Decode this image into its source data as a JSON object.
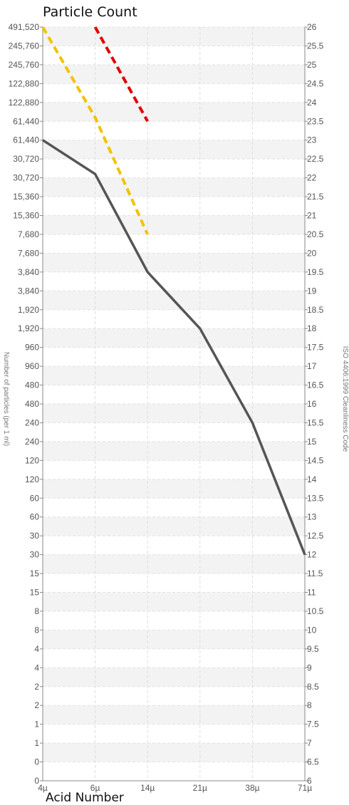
{
  "title": "Particle Count",
  "footer_label": "Acid Number",
  "chart_data": {
    "type": "line",
    "title": "Particle Count",
    "x": [
      "4µ",
      "6µ",
      "14µ",
      "21µ",
      "38µ",
      "71µ"
    ],
    "xlabel": "",
    "ylabel_left": "Number of particles (per 1 ml)",
    "ylabel_right": "ISO 4406:1999 Cleanliness Code",
    "ylim_right": [
      6,
      26
    ],
    "left_tick_labels": [
      "491,520",
      "245,760",
      "245,760",
      "122,880",
      "122,880",
      "61,440",
      "61,440",
      "30,720",
      "30,720",
      "15,360",
      "15,360",
      "7,680",
      "7,680",
      "3,840",
      "3,840",
      "1,920",
      "1,920",
      "960",
      "960",
      "480",
      "480",
      "240",
      "240",
      "120",
      "120",
      "60",
      "60",
      "30",
      "30",
      "15",
      "15",
      "8",
      "8",
      "4",
      "4",
      "2",
      "2",
      "1",
      "1",
      "0",
      "0"
    ],
    "right_tick_labels": [
      "26",
      "25.5",
      "25",
      "24.5",
      "24",
      "23.5",
      "23",
      "22.5",
      "22",
      "21.5",
      "21",
      "20.5",
      "20",
      "19.5",
      "19",
      "18.5",
      "18",
      "17.5",
      "17",
      "16.5",
      "16",
      "15.5",
      "15",
      "14.5",
      "14",
      "13.5",
      "13",
      "12.5",
      "12",
      "11.5",
      "11",
      "10.5",
      "10",
      "9.5",
      "9",
      "8.5",
      "8",
      "7.5",
      "7",
      "6.5",
      "6"
    ],
    "grid": true,
    "series": [
      {
        "values": [
          23,
          22.1,
          19.5,
          18,
          15.5,
          12
        ],
        "color": "#555555",
        "style": "solid"
      },
      {
        "values": [
          26,
          23.6,
          20.5,
          null,
          null,
          null
        ],
        "color": "#f2c200",
        "style": "dashed"
      },
      {
        "values": [
          null,
          26,
          23.5,
          null,
          null,
          null
        ],
        "color": "#e00000",
        "style": "dashed"
      }
    ]
  }
}
